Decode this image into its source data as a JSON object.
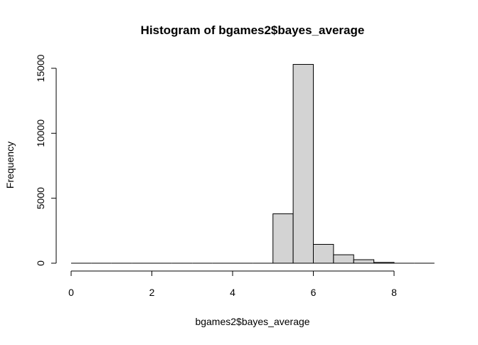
{
  "chart_data": {
    "type": "bar",
    "title": "Histogram of bgames2$bayes_average",
    "xlabel": "bgames2$bayes_average",
    "ylabel": "Frequency",
    "bins": [
      {
        "x0": 0.0,
        "x1": 0.5,
        "value": 0
      },
      {
        "x0": 0.5,
        "x1": 1.0,
        "value": 0
      },
      {
        "x0": 1.0,
        "x1": 1.5,
        "value": 0
      },
      {
        "x0": 1.5,
        "x1": 2.0,
        "value": 0
      },
      {
        "x0": 2.0,
        "x1": 2.5,
        "value": 0
      },
      {
        "x0": 2.5,
        "x1": 3.0,
        "value": 0
      },
      {
        "x0": 3.0,
        "x1": 3.5,
        "value": 0
      },
      {
        "x0": 3.5,
        "x1": 4.0,
        "value": 0
      },
      {
        "x0": 4.0,
        "x1": 4.5,
        "value": 0
      },
      {
        "x0": 4.5,
        "x1": 5.0,
        "value": 0
      },
      {
        "x0": 5.0,
        "x1": 5.5,
        "value": 3800
      },
      {
        "x0": 5.5,
        "x1": 6.0,
        "value": 15300
      },
      {
        "x0": 6.0,
        "x1": 6.5,
        "value": 1450
      },
      {
        "x0": 6.5,
        "x1": 7.0,
        "value": 650
      },
      {
        "x0": 7.0,
        "x1": 7.5,
        "value": 270
      },
      {
        "x0": 7.5,
        "x1": 8.0,
        "value": 60
      },
      {
        "x0": 8.0,
        "x1": 8.5,
        "value": 0
      },
      {
        "x0": 8.5,
        "x1": 9.0,
        "value": 0
      }
    ],
    "xticks": [
      0,
      2,
      4,
      6,
      8
    ],
    "yticks": [
      0,
      5000,
      10000,
      15000
    ],
    "xlim": [
      0,
      9
    ],
    "ylim": [
      0,
      15300
    ],
    "grid": false,
    "bar_color": "#d3d3d3",
    "edge_color": "#000000"
  }
}
